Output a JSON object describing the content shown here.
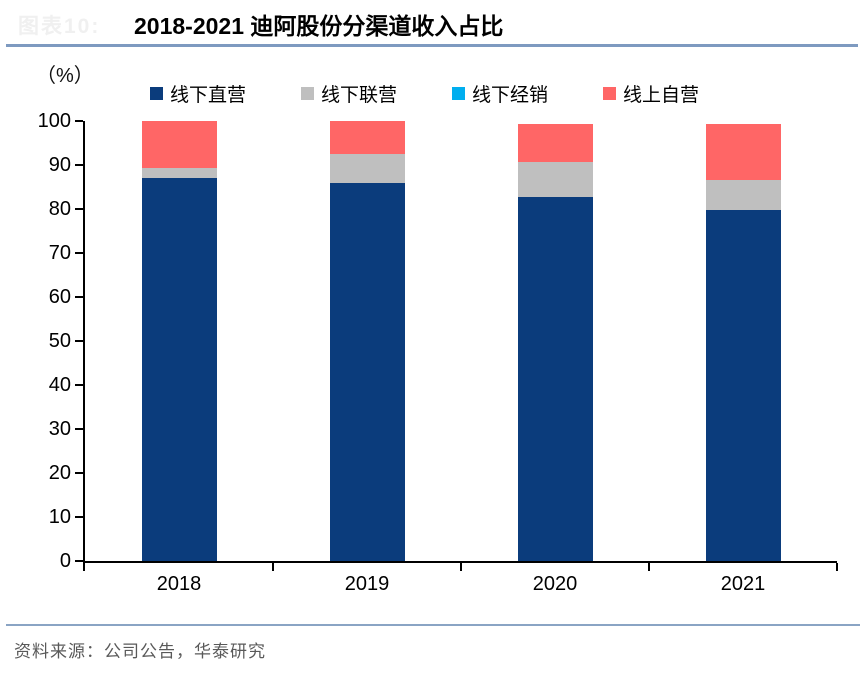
{
  "header": {
    "figure_label": "图表10:",
    "title": "2018-2021 迪阿股份分渠道收入占比"
  },
  "chart": {
    "unit_label": "（%）"
  },
  "chart_data": {
    "type": "bar",
    "stacked": true,
    "title": "2018-2021 迪阿股份分渠道收入占比",
    "ylabel": "%",
    "xlabel": "",
    "categories": [
      "2018",
      "2019",
      "2020",
      "2021"
    ],
    "series": [
      {
        "name": "线下直营",
        "color": "#0b3c7c",
        "values": [
          87.0,
          85.9,
          82.7,
          79.8
        ]
      },
      {
        "name": "线下联营",
        "color": "#bfbfbf",
        "values": [
          2.3,
          6.6,
          8.0,
          6.8
        ]
      },
      {
        "name": "线下经销",
        "color": "#00aeef",
        "values": [
          0,
          0,
          0,
          0
        ]
      },
      {
        "name": "线上自营",
        "color": "#ff6666",
        "values": [
          10.7,
          7.5,
          8.7,
          12.8
        ]
      }
    ],
    "ylim": [
      0,
      100
    ],
    "yticks": [
      0,
      10,
      20,
      30,
      40,
      50,
      60,
      70,
      80,
      90,
      100
    ],
    "legend_position": "top",
    "grid": false
  },
  "footer": {
    "source": "资料来源：公司公告，华泰研究"
  },
  "colors": {
    "accent_line": "#7e9ac0",
    "axis": "#000000",
    "source_text": "#595959"
  }
}
